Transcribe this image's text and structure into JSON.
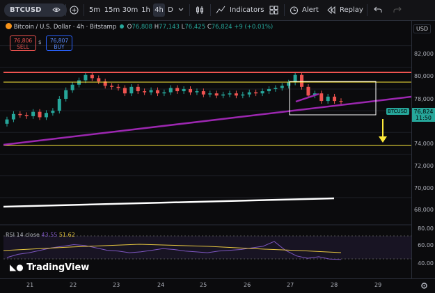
{
  "toolbar": {
    "symbol": "BTCUSD",
    "intervals": [
      "5m",
      "15m",
      "30m",
      "1h",
      "4h",
      "D"
    ],
    "active_interval": "4h",
    "indicators_label": "Indicators",
    "alert_label": "Alert",
    "replay_label": "Replay"
  },
  "legend": {
    "title": "Bitcoin / U.S. Dollar · 4h · Bitstamp",
    "open_label": "O",
    "open": "76,808",
    "high_label": "H",
    "high": "77,143",
    "low_label": "L",
    "low": "76,425",
    "close_label": "C",
    "close": "76,824",
    "change": "+9 (+0.01%)"
  },
  "trade": {
    "sell_price": "76,806",
    "sell_label": "SELL",
    "qty": "$",
    "buy_price": "76,807",
    "buy_label": "BUY"
  },
  "price_axis": {
    "currency": "USD",
    "ticks": [
      "82,000",
      "80,000",
      "78,000",
      "76,000",
      "74,000",
      "72,000",
      "70,000",
      "68,000"
    ]
  },
  "last_price": {
    "symbol": "BTCUSD",
    "price": "76,824",
    "countdown": "11:50"
  },
  "rsi": {
    "label": "RSI 14 close",
    "value1": "43.55",
    "value2": "51.62",
    "ticks": [
      "80.00",
      "60.00",
      "40.00"
    ]
  },
  "time_axis": {
    "ticks": [
      "21",
      "22",
      "23",
      "24",
      "25",
      "26",
      "27",
      "28",
      "29"
    ]
  },
  "brand": "TradingView",
  "colors": {
    "up": "#26a69a",
    "down": "#ef5350",
    "purple": "#9c27b0",
    "yellow": "#ffeb3b"
  },
  "chart_data": {
    "type": "candlestick",
    "symbol": "BTCUSD",
    "ylim": [
      66000,
      83000
    ],
    "candles_approx_close": [
      75200,
      75700,
      75600,
      75500,
      75900,
      75400,
      75800,
      76000,
      77100,
      77900,
      78400,
      78800,
      79300,
      79000,
      78700,
      78300,
      78200,
      78100,
      77600,
      78200,
      77800,
      77700,
      77900,
      77600,
      77700,
      78100,
      77800,
      78000,
      77700,
      77800,
      77500,
      77600,
      77400,
      77500,
      77600,
      77400,
      77500,
      77700,
      77600,
      77800,
      78000,
      78100,
      78300,
      78600,
      79300,
      78200,
      77400,
      77600,
      76900,
      77300,
      76900,
      76824
    ],
    "horizontal_lines": [
      {
        "price": 80300,
        "color": "#ef5350"
      },
      {
        "price": 79500,
        "color": "#ffeb3b"
      },
      {
        "price": 73800,
        "color": "#ffeb3b"
      }
    ],
    "rsi_values": [
      46,
      50,
      52,
      55,
      58,
      60,
      62,
      61,
      58,
      55,
      54,
      52,
      53,
      55,
      57,
      56,
      54,
      53,
      52,
      54,
      55,
      56,
      58,
      60,
      66,
      55,
      48,
      45,
      47,
      44,
      43.55
    ]
  }
}
